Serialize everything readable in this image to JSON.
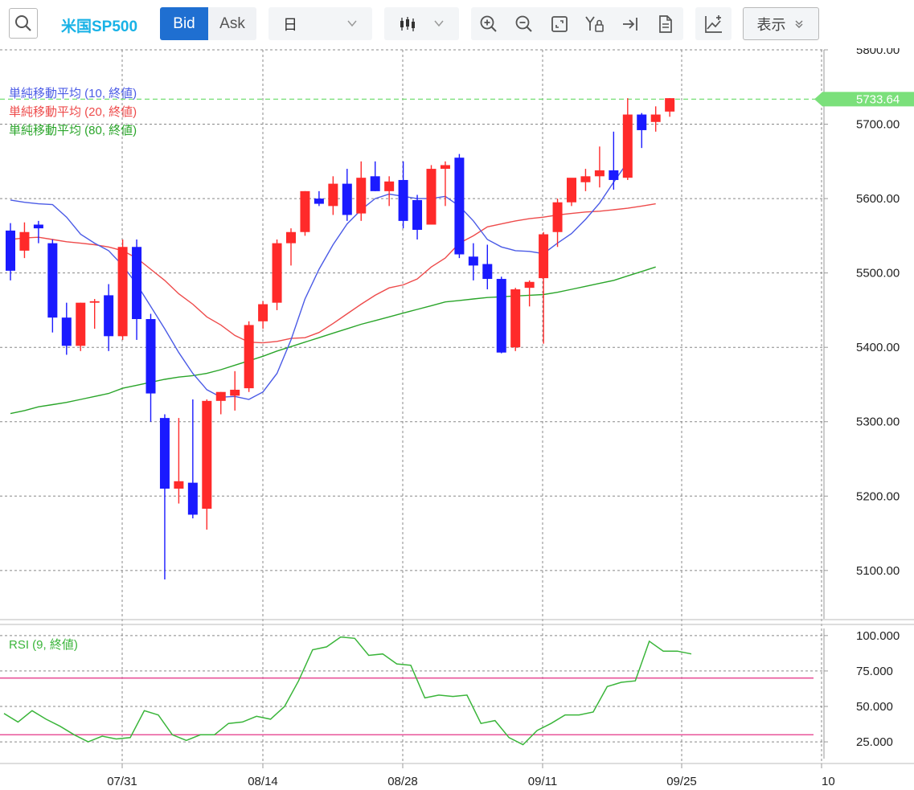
{
  "toolbar": {
    "search_icon": "search-icon",
    "symbol": "米国SP500",
    "bid_label": "Bid",
    "ask_label": "Ask",
    "period_value": "日",
    "chart_type_icon": "candlestick-icon",
    "tools": [
      "zoom-in-icon",
      "zoom-out-icon",
      "fit-screen-icon",
      "y-axis-lock-icon",
      "scroll-to-end-icon",
      "document-icon"
    ],
    "add_indicator_icon": "add-indicator-icon",
    "display_label": "表示",
    "accent": "#1f6fd1",
    "symbol_color": "#18b2e6"
  },
  "chart_data": [
    {
      "type": "candlestick",
      "y_ticks": [
        "5100.00",
        "5200.00",
        "5300.00",
        "5400.00",
        "5500.00",
        "5600.00",
        "5700.00",
        "5800.00"
      ],
      "ylim": [
        5035,
        5800
      ],
      "x_ticks": [
        "07/31",
        "08/14",
        "08/28",
        "09/11",
        "09/25",
        "10"
      ],
      "last_price": "5733.64",
      "last_price_color": "#7be07b",
      "up_color": "#ff2a2a",
      "down_color": "#1a1aff",
      "grid": true,
      "legend": [
        {
          "label": "単純移動平均 (10, 終値)",
          "color": "#4b5be6"
        },
        {
          "label": "単純移動平均 (20, 終値)",
          "color": "#ee4b4b"
        },
        {
          "label": "単純移動平均 (80, 終値)",
          "color": "#2aa52a"
        }
      ],
      "candles": [
        [
          5557,
          5567,
          5490,
          5503
        ],
        [
          5530,
          5568,
          5520,
          5555
        ],
        [
          5565,
          5570,
          5540,
          5560
        ],
        [
          5540,
          5545,
          5420,
          5440
        ],
        [
          5440,
          5460,
          5390,
          5402
        ],
        [
          5402,
          5460,
          5395,
          5460
        ],
        [
          5460,
          5465,
          5425,
          5462
        ],
        [
          5470,
          5485,
          5395,
          5415
        ],
        [
          5415,
          5545,
          5410,
          5535
        ],
        [
          5535,
          5545,
          5410,
          5438
        ],
        [
          5438,
          5445,
          5300,
          5338
        ],
        [
          5305,
          5310,
          5088,
          5210
        ],
        [
          5210,
          5305,
          5190,
          5220
        ],
        [
          5218,
          5330,
          5170,
          5175
        ],
        [
          5183,
          5330,
          5155,
          5328
        ],
        [
          5328,
          5340,
          5310,
          5340
        ],
        [
          5335,
          5368,
          5315,
          5343
        ],
        [
          5345,
          5435,
          5340,
          5430
        ],
        [
          5435,
          5462,
          5425,
          5458
        ],
        [
          5460,
          5545,
          5450,
          5540
        ],
        [
          5540,
          5560,
          5510,
          5555
        ],
        [
          5555,
          5610,
          5550,
          5610
        ],
        [
          5600,
          5610,
          5590,
          5593
        ],
        [
          5590,
          5630,
          5578,
          5620
        ],
        [
          5620,
          5640,
          5570,
          5578
        ],
        [
          5580,
          5650,
          5570,
          5628
        ],
        [
          5630,
          5650,
          5610,
          5610
        ],
        [
          5610,
          5630,
          5590,
          5623
        ],
        [
          5625,
          5650,
          5560,
          5570
        ],
        [
          5598,
          5605,
          5545,
          5558
        ],
        [
          5565,
          5645,
          5565,
          5640
        ],
        [
          5640,
          5650,
          5590,
          5645
        ],
        [
          5655,
          5660,
          5520,
          5525
        ],
        [
          5522,
          5540,
          5490,
          5510
        ],
        [
          5512,
          5538,
          5478,
          5492
        ],
        [
          5492,
          5495,
          5392,
          5393
        ],
        [
          5400,
          5480,
          5395,
          5478
        ],
        [
          5480,
          5490,
          5455,
          5488
        ],
        [
          5493,
          5555,
          5405,
          5552
        ],
        [
          5555,
          5600,
          5535,
          5595
        ],
        [
          5595,
          5627,
          5590,
          5628
        ],
        [
          5622,
          5640,
          5610,
          5630
        ],
        [
          5630,
          5670,
          5615,
          5638
        ],
        [
          5638,
          5690,
          5612,
          5625
        ],
        [
          5628,
          5735,
          5625,
          5713
        ],
        [
          5713,
          5715,
          5668,
          5692
        ],
        [
          5703,
          5724,
          5690,
          5713
        ],
        [
          5717,
          5735,
          5710,
          5735
        ]
      ],
      "sma10": [
        5598,
        5595,
        5593,
        5592,
        5575,
        5552,
        5540,
        5530,
        5510,
        5485,
        5455,
        5425,
        5393,
        5365,
        5343,
        5333,
        5334,
        5330,
        5340,
        5365,
        5410,
        5465,
        5505,
        5538,
        5566,
        5585,
        5600,
        5606,
        5603,
        5600,
        5600,
        5603,
        5590,
        5570,
        5545,
        5535,
        5530,
        5529,
        5526,
        5540,
        5553,
        5572,
        5594,
        5622,
        5649
      ],
      "sma20": [
        5545,
        5547,
        5548,
        5545,
        5542,
        5540,
        5538,
        5535,
        5530,
        5520,
        5505,
        5490,
        5472,
        5458,
        5441,
        5430,
        5416,
        5407,
        5406,
        5408,
        5412,
        5413,
        5420,
        5432,
        5445,
        5458,
        5470,
        5480,
        5484,
        5492,
        5508,
        5520,
        5540,
        5550,
        5562,
        5566,
        5570,
        5573,
        5575,
        5578,
        5580,
        5582,
        5583,
        5585,
        5587,
        5590,
        5593
      ],
      "sma80": [
        5311,
        5315,
        5320,
        5323,
        5326,
        5330,
        5334,
        5338,
        5345,
        5349,
        5353,
        5357,
        5360,
        5362,
        5365,
        5370,
        5376,
        5382,
        5388,
        5395,
        5401,
        5407,
        5413,
        5419,
        5425,
        5431,
        5436,
        5441,
        5446,
        5451,
        5456,
        5461,
        5463,
        5465,
        5467,
        5468,
        5469,
        5470,
        5471,
        5474,
        5478,
        5482,
        5486,
        5490,
        5496,
        5502,
        5508
      ]
    },
    {
      "type": "line",
      "title": "RSI (9, 終値)",
      "series_color": "#3ab53a",
      "y_ticks": [
        "25.000",
        "50.000",
        "75.000",
        "100.000"
      ],
      "ylim": [
        12,
        105
      ],
      "levels": [
        30,
        70
      ],
      "level_color": "#e8559a",
      "values": [
        45,
        39,
        47,
        41,
        36,
        30,
        25,
        29,
        27,
        28,
        47,
        44,
        30,
        26,
        30,
        30,
        38,
        39,
        43,
        41,
        50,
        68,
        90,
        92,
        99,
        98,
        86,
        87,
        80,
        79,
        56,
        58,
        57,
        58,
        38,
        40,
        28,
        23,
        33,
        38,
        44,
        44,
        46,
        64,
        67,
        68,
        96,
        89,
        89,
        87
      ]
    }
  ]
}
